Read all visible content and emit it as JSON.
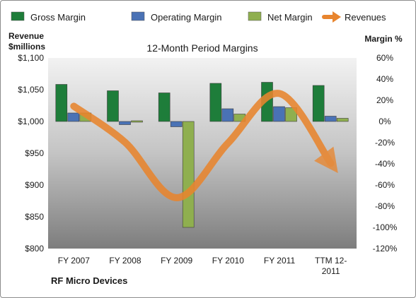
{
  "chart_data": {
    "type": "bar",
    "title": "12-Month Period Margins",
    "categories": [
      "FY 2007",
      "FY 2008",
      "FY 2009",
      "FY 2010",
      "FY 2011",
      "TTM 12-2011"
    ],
    "category_lines": [
      [
        "FY 2007"
      ],
      [
        "FY 2008"
      ],
      [
        "FY 2009"
      ],
      [
        "FY 2010"
      ],
      [
        "FY 2011"
      ],
      [
        "TTM 12-",
        "2011"
      ]
    ],
    "series": [
      {
        "name": "Gross Margin",
        "axis": "right",
        "unit": "%",
        "color": "#1e7d3a",
        "values": [
          35,
          29,
          27,
          36,
          37,
          34
        ]
      },
      {
        "name": "Operating Margin",
        "axis": "right",
        "unit": "%",
        "color": "#4a72b5",
        "values": [
          8,
          -3,
          -5,
          12,
          14,
          5
        ]
      },
      {
        "name": "Net Margin",
        "axis": "right",
        "unit": "%",
        "color": "#8faf4f",
        "values": [
          8,
          0,
          -100,
          7,
          13,
          3
        ]
      },
      {
        "name": "Revenues",
        "axis": "left",
        "type": "line",
        "unit": "$millions",
        "color": "#e8852e",
        "values": [
          1024,
          967,
          880,
          966,
          1044,
          934
        ]
      }
    ],
    "left_axis": {
      "title_lines": [
        "Revenue",
        "$millions"
      ],
      "min": 800,
      "max": 1100,
      "step": 50,
      "tick_labels": [
        "$800",
        "$850",
        "$900",
        "$950",
        "$1,000",
        "$1,050",
        "$1,100"
      ]
    },
    "right_axis": {
      "title": "Margin %",
      "min": -120,
      "max": 60,
      "step": 20,
      "tick_labels": [
        "-120%",
        "-100%",
        "-80%",
        "-60%",
        "-40%",
        "-20%",
        "0%",
        "20%",
        "40%",
        "60%"
      ]
    },
    "legend": {
      "placement": "top"
    },
    "grid": false,
    "source": "RF Micro Devices"
  }
}
